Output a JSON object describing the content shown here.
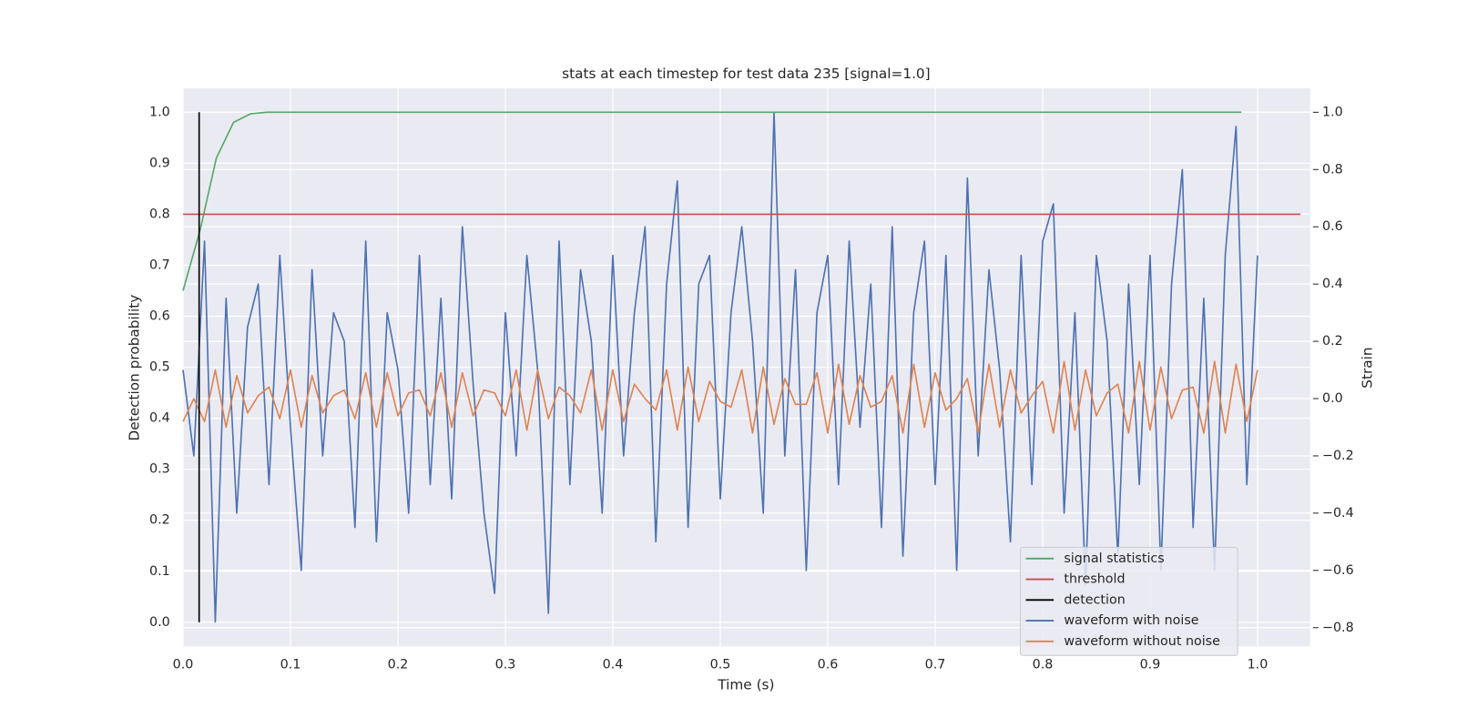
{
  "chart_data": {
    "type": "line",
    "title": "stats at each timestep for test data 235 [signal=1.0]",
    "xlabel": "Time (s)",
    "ylabel": "Detection probability",
    "y2label": "Strain",
    "xlim": [
      0,
      1.049
    ],
    "ylim": [
      -0.047,
      1.047
    ],
    "y2lim": [
      -0.865,
      1.084
    ],
    "xticks": [
      {
        "value": 0,
        "label": "0.0"
      },
      0.1,
      0.2,
      0.3,
      0.4,
      0.5,
      0.6,
      0.7,
      0.8,
      0.9,
      {
        "value": 1,
        "label": "1.0"
      }
    ],
    "yticks": [
      {
        "value": 0,
        "label": "0.0"
      },
      0.1,
      0.2,
      0.3,
      0.4,
      0.5,
      0.6,
      0.7,
      0.8,
      0.9,
      {
        "value": 1,
        "label": "1.0"
      }
    ],
    "y2ticks": [
      {
        "value": -0.8,
        "label": "−0.8"
      },
      {
        "value": -0.6,
        "label": "−0.6"
      },
      {
        "value": -0.4,
        "label": "−0.4"
      },
      {
        "value": -0.2,
        "label": "−0.2"
      },
      {
        "value": 0,
        "label": "0.0"
      },
      0.2,
      0.4,
      0.6,
      0.8,
      {
        "value": 1,
        "label": "1.0"
      }
    ],
    "grid": true,
    "legend": "lower right",
    "series": [
      {
        "name": "signal statistics",
        "color": "#55a868",
        "x": [
          0,
          0.016,
          0.031,
          0.047,
          0.063,
          0.078,
          0.2,
          0.4,
          0.6,
          0.8,
          0.985
        ],
        "values": [
          0.65,
          0.77,
          0.91,
          0.98,
          0.997,
          1.0,
          1.0,
          1.0,
          1.0,
          1.0,
          1.0
        ]
      },
      {
        "name": "threshold",
        "color": "#c44e52",
        "x": [
          0,
          1.04
        ],
        "values": [
          0.8,
          0.8
        ]
      },
      {
        "name": "detection",
        "color": "#000000",
        "x": [
          0.015,
          0.015
        ],
        "values": [
          0,
          1
        ]
      },
      {
        "name": "waveform with noise",
        "color": "#4c72b0",
        "axis": "y2",
        "x": [
          0,
          0.01,
          0.02,
          0.03,
          0.04,
          0.05,
          0.06,
          0.07,
          0.08,
          0.09,
          0.1,
          0.11,
          0.12,
          0.13,
          0.14,
          0.15,
          0.16,
          0.17,
          0.18,
          0.19,
          0.2,
          0.21,
          0.22,
          0.23,
          0.24,
          0.25,
          0.26,
          0.27,
          0.28,
          0.29,
          0.3,
          0.31,
          0.32,
          0.33,
          0.34,
          0.35,
          0.36,
          0.37,
          0.38,
          0.39,
          0.4,
          0.41,
          0.42,
          0.43,
          0.44,
          0.45,
          0.46,
          0.47,
          0.48,
          0.49,
          0.5,
          0.51,
          0.52,
          0.53,
          0.54,
          0.55,
          0.56,
          0.57,
          0.58,
          0.59,
          0.6,
          0.61,
          0.62,
          0.63,
          0.64,
          0.65,
          0.66,
          0.67,
          0.68,
          0.69,
          0.7,
          0.71,
          0.72,
          0.73,
          0.74,
          0.75,
          0.76,
          0.77,
          0.78,
          0.79,
          0.8,
          0.81,
          0.82,
          0.83,
          0.84,
          0.85,
          0.86,
          0.87,
          0.88,
          0.89,
          0.9,
          0.91,
          0.92,
          0.93,
          0.94,
          0.95,
          0.96,
          0.97,
          0.98,
          0.99,
          1.0
        ],
        "values": [
          0.1,
          -0.2,
          0.55,
          -0.78,
          0.35,
          -0.4,
          0.25,
          0.4,
          -0.3,
          0.5,
          -0.1,
          -0.6,
          0.45,
          -0.2,
          0.3,
          0.2,
          -0.45,
          0.55,
          -0.5,
          0.3,
          0.1,
          -0.4,
          0.5,
          -0.3,
          0.35,
          -0.35,
          0.6,
          0.05,
          -0.4,
          -0.68,
          0.3,
          -0.2,
          0.5,
          0.1,
          -0.75,
          0.55,
          -0.3,
          0.45,
          0.2,
          -0.4,
          0.5,
          -0.2,
          0.3,
          0.6,
          -0.5,
          0.4,
          0.76,
          -0.45,
          0.4,
          0.5,
          -0.35,
          0.3,
          0.6,
          0.2,
          -0.4,
          1.0,
          -0.2,
          0.45,
          -0.6,
          0.3,
          0.5,
          -0.3,
          0.55,
          -0.1,
          0.4,
          -0.45,
          0.6,
          -0.55,
          0.3,
          0.55,
          -0.3,
          0.5,
          -0.6,
          0.77,
          -0.2,
          0.45,
          0.1,
          -0.5,
          0.5,
          -0.3,
          0.55,
          0.68,
          -0.4,
          0.3,
          -0.65,
          0.5,
          0.2,
          -0.55,
          0.4,
          -0.3,
          0.5,
          -0.6,
          0.4,
          0.8,
          -0.45,
          0.35,
          -0.6,
          0.5,
          0.95,
          -0.3,
          0.5
        ]
      },
      {
        "name": "waveform without noise",
        "color": "#dd8452",
        "axis": "y2",
        "x": [
          0,
          0.01,
          0.02,
          0.03,
          0.04,
          0.05,
          0.06,
          0.07,
          0.08,
          0.09,
          0.1,
          0.11,
          0.12,
          0.13,
          0.14,
          0.15,
          0.16,
          0.17,
          0.18,
          0.19,
          0.2,
          0.21,
          0.22,
          0.23,
          0.24,
          0.25,
          0.26,
          0.27,
          0.28,
          0.29,
          0.3,
          0.31,
          0.32,
          0.33,
          0.34,
          0.35,
          0.36,
          0.37,
          0.38,
          0.39,
          0.4,
          0.41,
          0.42,
          0.43,
          0.44,
          0.45,
          0.46,
          0.47,
          0.48,
          0.49,
          0.5,
          0.51,
          0.52,
          0.53,
          0.54,
          0.55,
          0.56,
          0.57,
          0.58,
          0.59,
          0.6,
          0.61,
          0.62,
          0.63,
          0.64,
          0.65,
          0.66,
          0.67,
          0.68,
          0.69,
          0.7,
          0.71,
          0.72,
          0.73,
          0.74,
          0.75,
          0.76,
          0.77,
          0.78,
          0.79,
          0.8,
          0.81,
          0.82,
          0.83,
          0.84,
          0.85,
          0.86,
          0.87,
          0.88,
          0.89,
          0.9,
          0.91,
          0.92,
          0.93,
          0.94,
          0.95,
          0.96,
          0.97,
          0.98,
          0.99,
          1.0
        ],
        "values": [
          -0.08,
          0.0,
          -0.08,
          0.1,
          -0.1,
          0.08,
          -0.05,
          0.01,
          0.04,
          -0.07,
          0.1,
          -0.1,
          0.08,
          -0.05,
          0.01,
          0.03,
          -0.07,
          0.09,
          -0.1,
          0.09,
          -0.06,
          0.02,
          0.03,
          -0.06,
          0.09,
          -0.1,
          0.09,
          -0.06,
          0.03,
          0.02,
          -0.06,
          0.1,
          -0.11,
          0.1,
          -0.07,
          0.04,
          0.01,
          -0.05,
          0.1,
          -0.11,
          0.1,
          -0.08,
          0.05,
          0.0,
          -0.04,
          0.1,
          -0.11,
          0.11,
          -0.08,
          0.06,
          -0.01,
          -0.03,
          0.1,
          -0.12,
          0.11,
          -0.09,
          0.07,
          -0.02,
          -0.02,
          0.09,
          -0.12,
          0.12,
          -0.09,
          0.08,
          -0.03,
          -0.01,
          0.08,
          -0.12,
          0.12,
          -0.1,
          0.09,
          -0.04,
          0.0,
          0.07,
          -0.12,
          0.12,
          -0.1,
          0.1,
          -0.05,
          0.01,
          0.06,
          -0.12,
          0.13,
          -0.11,
          0.1,
          -0.06,
          0.02,
          0.05,
          -0.12,
          0.13,
          -0.11,
          0.11,
          -0.07,
          0.03,
          0.04,
          -0.12,
          0.13,
          -0.12,
          0.12,
          -0.08,
          0.1
        ]
      }
    ]
  }
}
